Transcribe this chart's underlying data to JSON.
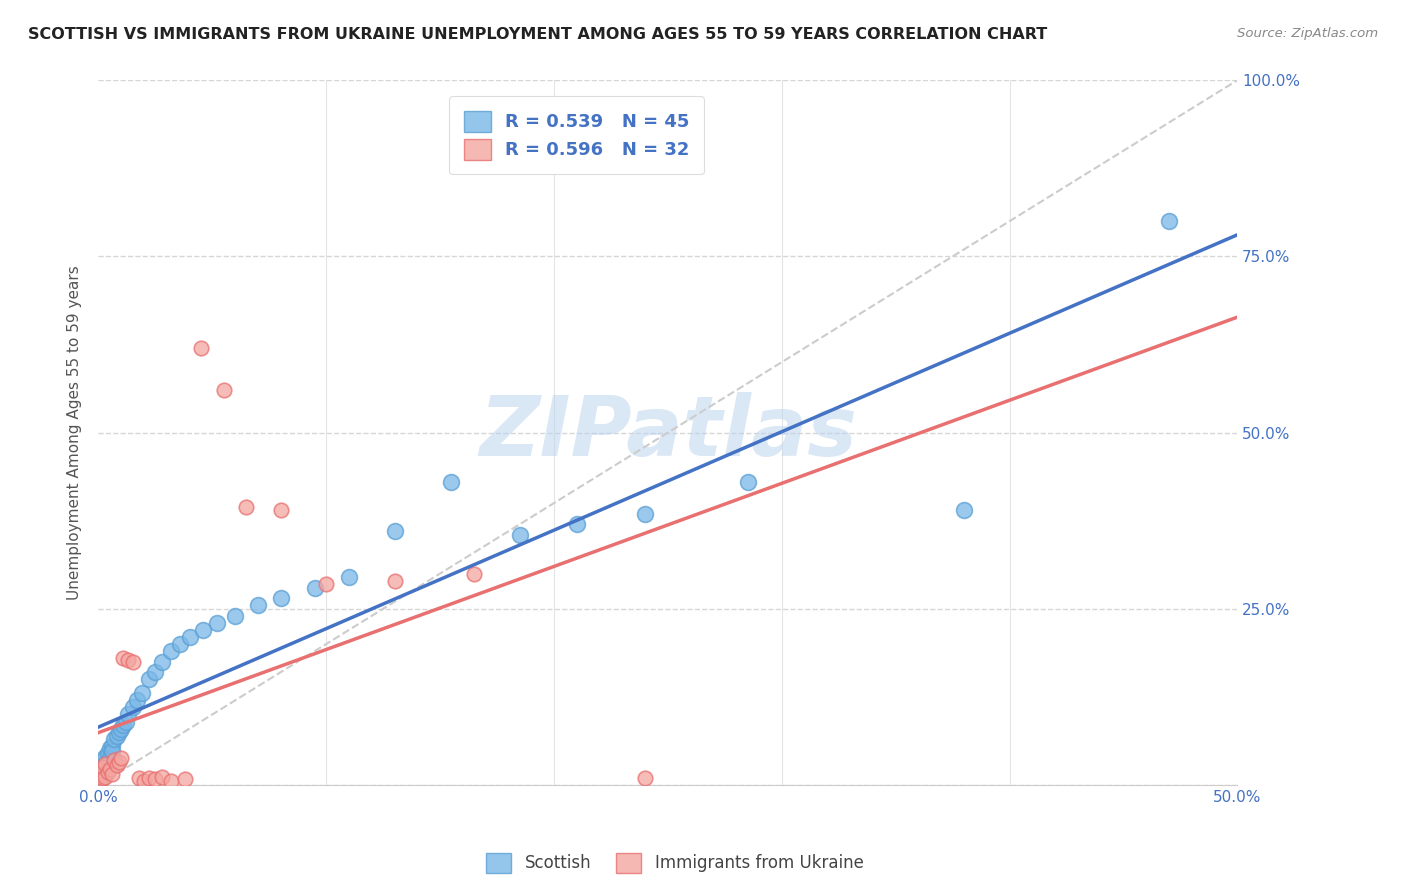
{
  "title": "SCOTTISH VS IMMIGRANTS FROM UKRAINE UNEMPLOYMENT AMONG AGES 55 TO 59 YEARS CORRELATION CHART",
  "source": "Source: ZipAtlas.com",
  "ylabel": "Unemployment Among Ages 55 to 59 years",
  "xlim": [
    0,
    0.5
  ],
  "ylim": [
    0,
    1.0
  ],
  "xticks": [
    0.0,
    0.1,
    0.2,
    0.3,
    0.4,
    0.5
  ],
  "yticks": [
    0.0,
    0.25,
    0.5,
    0.75,
    1.0
  ],
  "scottish_color": "#7ab8e8",
  "scottish_edge_color": "#5a9fd4",
  "ukrainian_color": "#f4a6a0",
  "ukrainian_edge_color": "#e87070",
  "trend_scot_color": "#4472C4",
  "trend_ukr_color": "#e87070",
  "scottish_R": 0.539,
  "scottish_N": 45,
  "ukrainian_R": 0.596,
  "ukrainian_N": 32,
  "legend_labels": [
    "Scottish",
    "Immigrants from Ukraine"
  ],
  "watermark": "ZIPatlas",
  "scottish_x": [
    0.001,
    0.001,
    0.001,
    0.002,
    0.002,
    0.002,
    0.003,
    0.003,
    0.004,
    0.004,
    0.005,
    0.005,
    0.006,
    0.006,
    0.007,
    0.008,
    0.009,
    0.01,
    0.011,
    0.012,
    0.013,
    0.015,
    0.017,
    0.019,
    0.022,
    0.025,
    0.028,
    0.032,
    0.036,
    0.04,
    0.046,
    0.052,
    0.06,
    0.07,
    0.08,
    0.095,
    0.11,
    0.13,
    0.155,
    0.185,
    0.21,
    0.24,
    0.285,
    0.38,
    0.47
  ],
  "scottish_y": [
    0.008,
    0.012,
    0.018,
    0.022,
    0.028,
    0.035,
    0.03,
    0.04,
    0.025,
    0.045,
    0.038,
    0.052,
    0.055,
    0.048,
    0.065,
    0.07,
    0.075,
    0.08,
    0.085,
    0.09,
    0.1,
    0.11,
    0.12,
    0.13,
    0.15,
    0.16,
    0.175,
    0.19,
    0.2,
    0.21,
    0.22,
    0.23,
    0.24,
    0.255,
    0.265,
    0.28,
    0.295,
    0.36,
    0.43,
    0.355,
    0.37,
    0.385,
    0.43,
    0.39,
    0.8
  ],
  "ukrainian_x": [
    0.001,
    0.001,
    0.001,
    0.002,
    0.002,
    0.003,
    0.003,
    0.004,
    0.005,
    0.006,
    0.007,
    0.008,
    0.009,
    0.01,
    0.011,
    0.013,
    0.015,
    0.018,
    0.02,
    0.022,
    0.025,
    0.028,
    0.032,
    0.038,
    0.045,
    0.055,
    0.065,
    0.08,
    0.1,
    0.13,
    0.165,
    0.24
  ],
  "ukrainian_y": [
    0.008,
    0.015,
    0.02,
    0.01,
    0.025,
    0.012,
    0.03,
    0.018,
    0.022,
    0.015,
    0.035,
    0.028,
    0.032,
    0.038,
    0.18,
    0.178,
    0.175,
    0.01,
    0.005,
    0.01,
    0.008,
    0.012,
    0.005,
    0.008,
    0.62,
    0.56,
    0.395,
    0.39,
    0.285,
    0.29,
    0.3,
    0.01
  ]
}
